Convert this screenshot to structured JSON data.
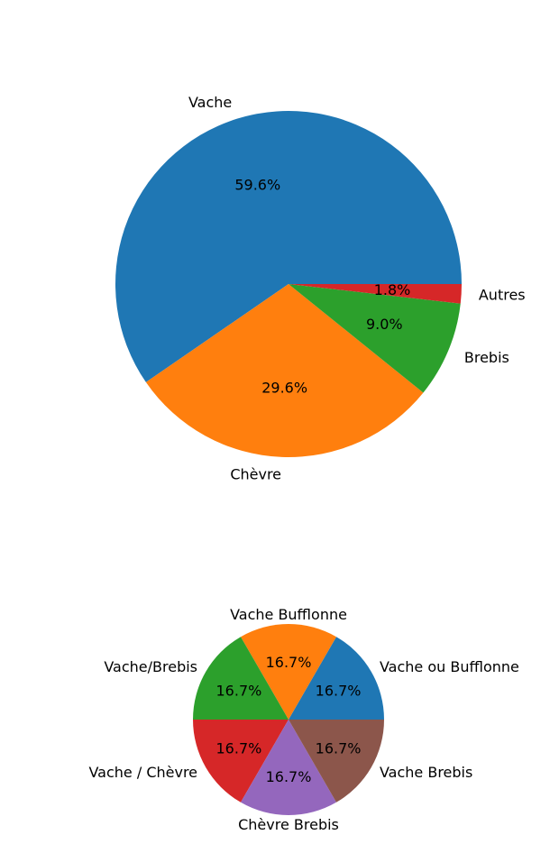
{
  "chart_data": [
    {
      "type": "pie",
      "title": "",
      "labels": [
        "Vache",
        "Chèvre",
        "Brebis",
        "Autres"
      ],
      "values": [
        59.6,
        29.6,
        9.0,
        1.8
      ],
      "percent_labels": [
        "59.6%",
        "29.6%",
        "9.0%",
        "1.8%"
      ],
      "colors": [
        "#1f77b4",
        "#ff7f0e",
        "#2ca02c",
        "#d62728"
      ]
    },
    {
      "type": "pie",
      "title": "",
      "labels": [
        "Vache ou Bufflonne",
        "Vache Bufflonne",
        "Vache/Brebis",
        "Vache / Chèvre",
        "Chèvre Brebis",
        "Vache Brebis"
      ],
      "values": [
        16.7,
        16.7,
        16.7,
        16.7,
        16.7,
        16.7
      ],
      "percent_labels": [
        "16.7%",
        "16.7%",
        "16.7%",
        "16.7%",
        "16.7%",
        "16.7%"
      ],
      "colors": [
        "#1f77b4",
        "#ff7f0e",
        "#2ca02c",
        "#d62728",
        "#9467bd",
        "#8c564b"
      ]
    }
  ]
}
